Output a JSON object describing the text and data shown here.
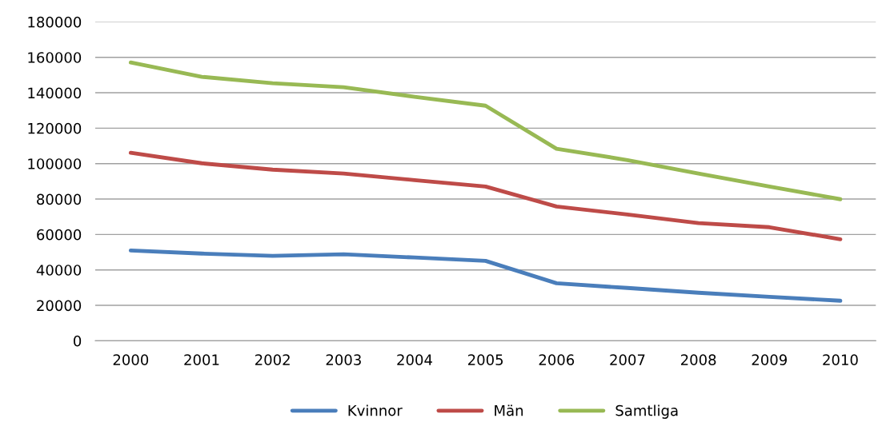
{
  "chart_data": {
    "type": "line",
    "categories": [
      "2000",
      "2001",
      "2002",
      "2003",
      "2004",
      "2005",
      "2006",
      "2007",
      "2008",
      "2009",
      "2010"
    ],
    "series": [
      {
        "name": "Kvinnor",
        "color": "#4a7ebb",
        "values": [
          51000,
          49200,
          47900,
          48800,
          47000,
          45100,
          32500,
          29800,
          27100,
          24800,
          22600
        ]
      },
      {
        "name": "Män",
        "color": "#be4b48",
        "values": [
          106100,
          100200,
          96600,
          94400,
          90700,
          87100,
          75800,
          71300,
          66400,
          64100,
          57300
        ]
      },
      {
        "name": "Samtliga",
        "color": "#98b954",
        "values": [
          157100,
          149000,
          145400,
          143100,
          137700,
          132700,
          108400,
          102000,
          94400,
          87100,
          79900
        ]
      }
    ],
    "ylim": [
      0,
      180000
    ],
    "yticks": [
      0,
      20000,
      40000,
      60000,
      80000,
      100000,
      120000,
      140000,
      160000,
      180000
    ],
    "grid": "y",
    "legend": "bottom",
    "marker": "none",
    "line_style": "solid"
  }
}
